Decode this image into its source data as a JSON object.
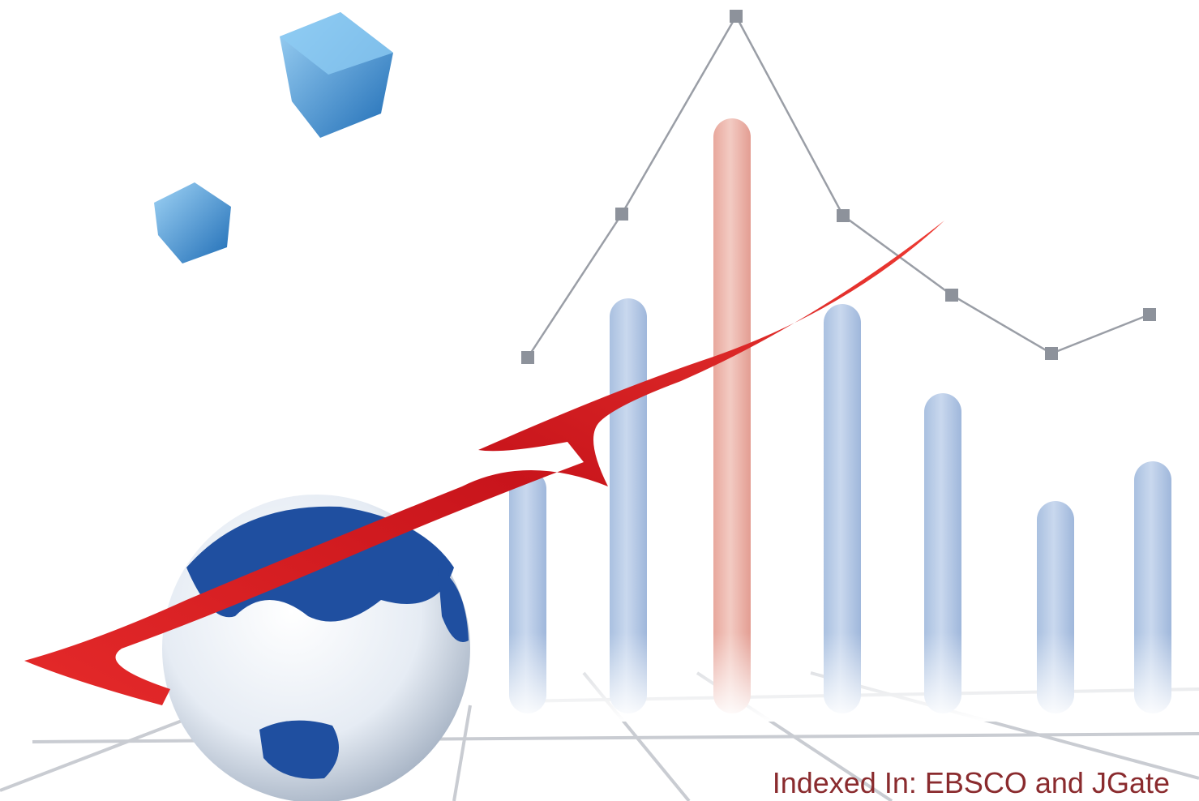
{
  "footer": {
    "indexed": "Indexed In: EBSCO and JGate"
  }
}
